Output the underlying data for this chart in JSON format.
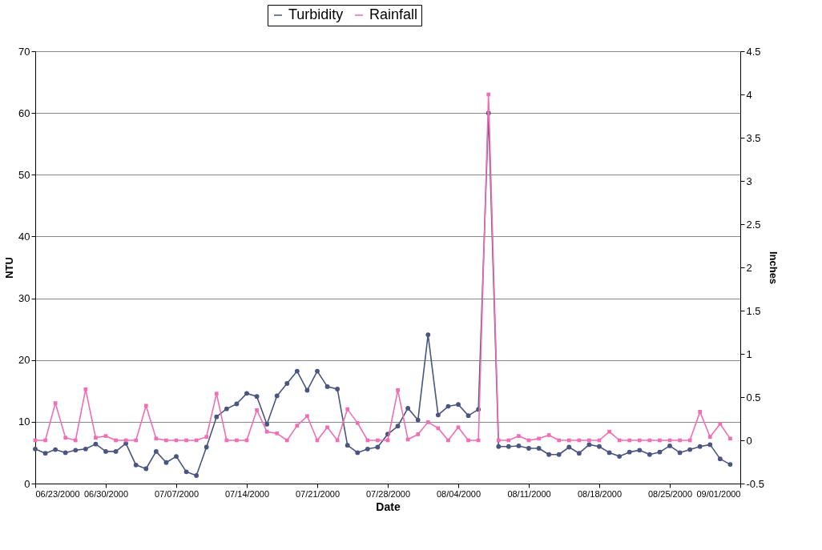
{
  "chart_data": {
    "type": "line",
    "xlabel": "Date",
    "ylabel": "NTU",
    "y2label": "Inches",
    "x": [
      "2000-06-23",
      "2000-06-24",
      "2000-06-25",
      "2000-06-26",
      "2000-06-27",
      "2000-06-28",
      "2000-06-29",
      "2000-06-30",
      "2000-07-01",
      "2000-07-02",
      "2000-07-03",
      "2000-07-04",
      "2000-07-05",
      "2000-07-06",
      "2000-07-07",
      "2000-07-08",
      "2000-07-09",
      "2000-07-10",
      "2000-07-11",
      "2000-07-12",
      "2000-07-13",
      "2000-07-14",
      "2000-07-15",
      "2000-07-16",
      "2000-07-17",
      "2000-07-18",
      "2000-07-19",
      "2000-07-20",
      "2000-07-21",
      "2000-07-22",
      "2000-07-23",
      "2000-07-24",
      "2000-07-25",
      "2000-07-26",
      "2000-07-27",
      "2000-07-28",
      "2000-07-29",
      "2000-07-30",
      "2000-07-31",
      "2000-08-01",
      "2000-08-02",
      "2000-08-03",
      "2000-08-04",
      "2000-08-05",
      "2000-08-06",
      "2000-08-07",
      "2000-08-08",
      "2000-08-09",
      "2000-08-10",
      "2000-08-11",
      "2000-08-12",
      "2000-08-13",
      "2000-08-14",
      "2000-08-15",
      "2000-08-16",
      "2000-08-17",
      "2000-08-18",
      "2000-08-19",
      "2000-08-20",
      "2000-08-21",
      "2000-08-22",
      "2000-08-23",
      "2000-08-24",
      "2000-08-25",
      "2000-08-26",
      "2000-08-27",
      "2000-08-28",
      "2000-08-29",
      "2000-08-30",
      "2000-08-31"
    ],
    "series": [
      {
        "name": "Turbidity",
        "color": "#4a5580",
        "marker": "circle",
        "values": [
          5.6,
          4.9,
          5.5,
          5.0,
          5.4,
          5.6,
          6.4,
          5.2,
          5.2,
          6.5,
          3.0,
          2.4,
          5.2,
          3.4,
          4.4,
          1.9,
          1.3,
          5.9,
          10.8,
          12.1,
          12.9,
          14.6,
          14.1,
          9.6,
          14.2,
          16.2,
          18.2,
          15.1,
          18.2,
          15.7,
          15.3,
          6.2,
          5.0,
          5.6,
          5.9,
          8.0,
          9.3,
          12.2,
          10.3,
          24.1,
          11.1,
          12.5,
          12.8,
          11.0,
          12.0,
          60,
          6.0,
          6.0,
          6.1,
          5.7,
          5.7,
          4.7,
          4.7,
          5.9,
          4.9,
          6.3,
          6.0,
          5.0,
          4.4,
          5.1,
          5.4,
          4.7,
          5.1,
          6.1,
          5.0,
          5.5,
          6.0,
          6.3,
          4.0,
          3.1
        ]
      },
      {
        "name": "Rainfall",
        "color": "#f06eb4",
        "marker": "square",
        "axis": "y2",
        "values": [
          0,
          0,
          0.43,
          0.03,
          0,
          0.59,
          0.03,
          0.05,
          0,
          0,
          0,
          0.4,
          0.02,
          0,
          0,
          0,
          0,
          0.04,
          0.54,
          0,
          0,
          0,
          0.35,
          0.1,
          0.08,
          0,
          0.17,
          0.28,
          0,
          0.15,
          0,
          0.36,
          0.2,
          0,
          0,
          0,
          0.58,
          0.01,
          0.07,
          0.21,
          0.14,
          0,
          0.15,
          0,
          0,
          4.0,
          0,
          0,
          0.05,
          0,
          0.02,
          0.06,
          0,
          0,
          0,
          0,
          0,
          0.1,
          0,
          0,
          0,
          0,
          0,
          0,
          0,
          0,
          0.33,
          0.04,
          0.19,
          0.02
        ]
      }
    ],
    "xlim": [
      "2000-06-23",
      "2000-09-01"
    ],
    "xticks": [
      {
        "value": "2000-06-23",
        "label": "06/23/2000"
      },
      {
        "value": "2000-06-30",
        "label": "06/30/2000"
      },
      {
        "value": "2000-07-07",
        "label": "07/07/2000"
      },
      {
        "value": "2000-07-14",
        "label": "07/14/2000"
      },
      {
        "value": "2000-07-21",
        "label": "07/21/2000"
      },
      {
        "value": "2000-07-28",
        "label": "07/28/2000"
      },
      {
        "value": "2000-08-04",
        "label": "08/04/2000"
      },
      {
        "value": "2000-08-11",
        "label": "08/11/2000"
      },
      {
        "value": "2000-08-18",
        "label": "08/18/2000"
      },
      {
        "value": "2000-08-25",
        "label": "08/25/2000"
      },
      {
        "value": "2000-09-01",
        "label": "09/01/2000"
      }
    ],
    "ylim": [
      0,
      70
    ],
    "yticks": [
      0,
      10,
      20,
      30,
      40,
      50,
      60,
      70
    ],
    "y2lim": [
      -0.5,
      4.5
    ],
    "y2ticks": [
      -0.5,
      0,
      0.5,
      1,
      1.5,
      2,
      2.5,
      3,
      3.5,
      4,
      4.5
    ],
    "grid": "y",
    "legend": "top",
    "line_style": "solid"
  }
}
